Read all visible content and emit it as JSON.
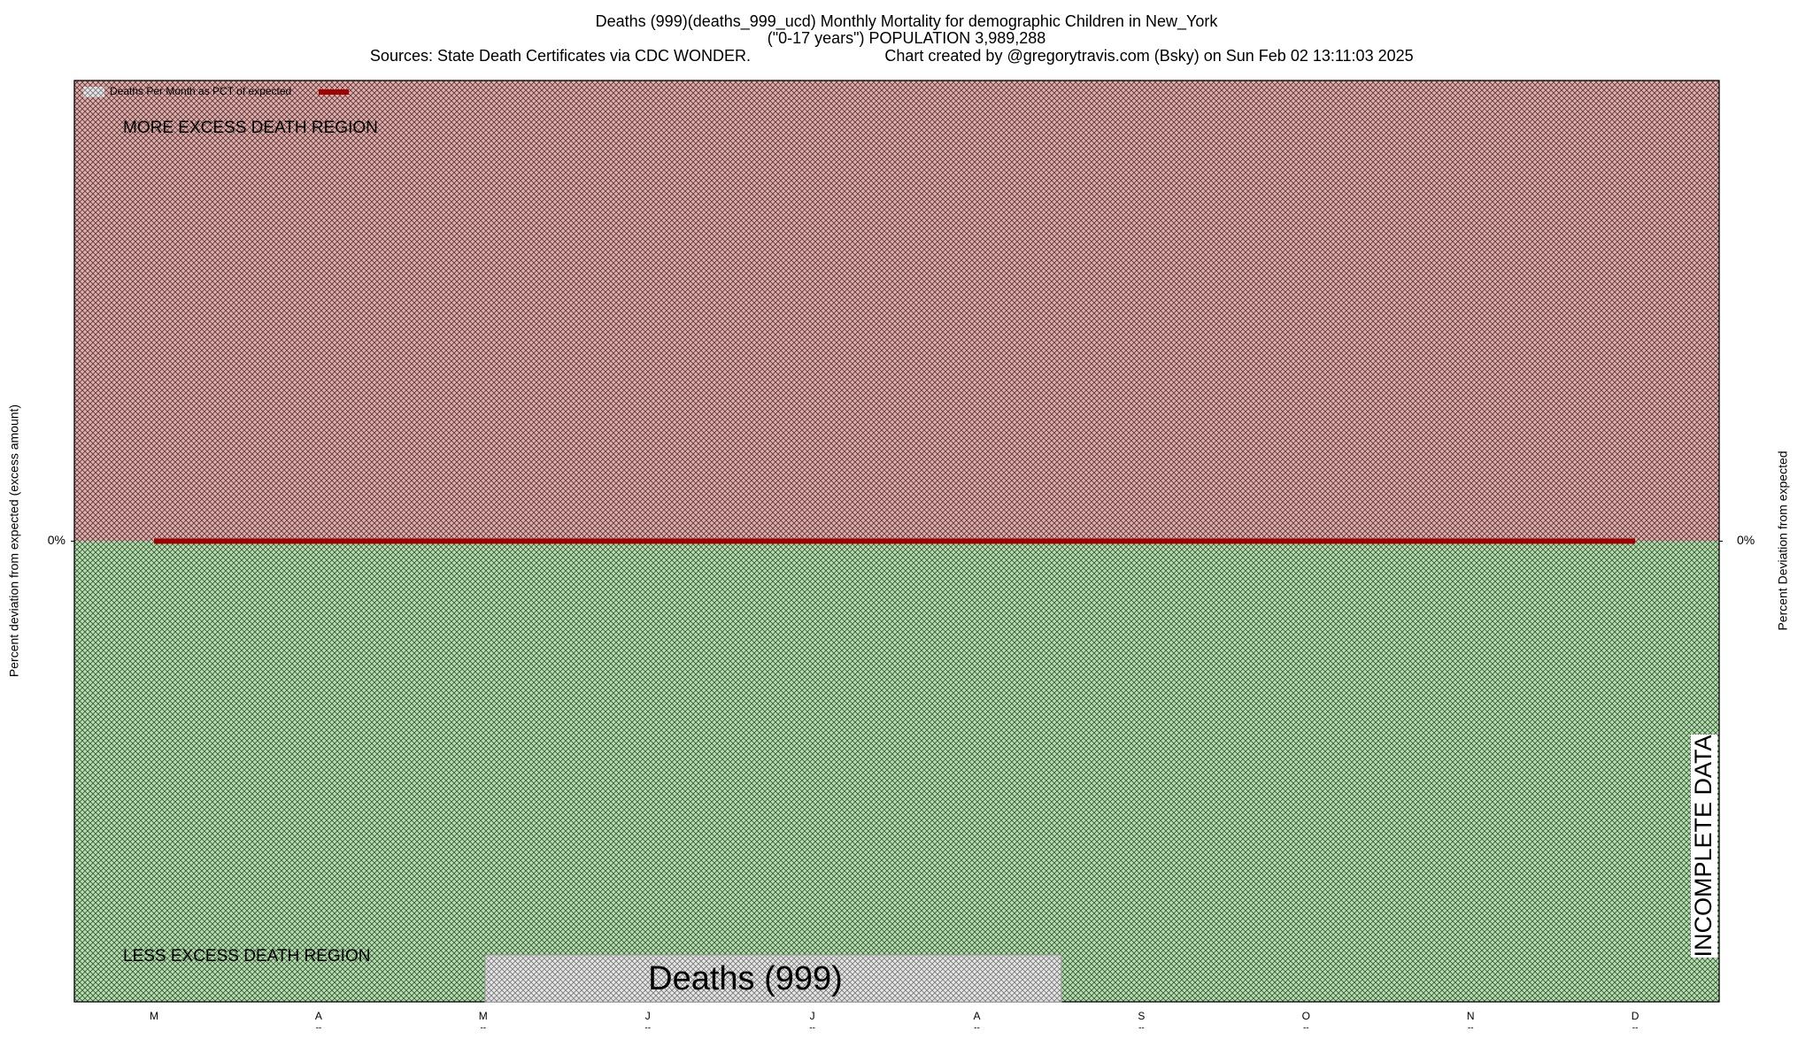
{
  "chart_data": {
    "type": "line",
    "title": "Deaths (999)(deaths_999_ucd) Monthly Mortality for demographic Children in New_York",
    "subtitle": "(\"0-17 years\") POPULATION 3,989,288",
    "source": "Sources: State Death Certificates via CDC WONDER.",
    "credit": "Chart created by @gregorytravis.com (Bsky) on Sun Feb 02 13:11:03 2025",
    "y_label": "Percent deviation from expected (excess amount)",
    "y2_label": "Percent Deviation from expected",
    "annotations": [
      "MORE EXCESS DEATH REGION",
      "LESS EXCESS DEATH REGION",
      "Deaths (999)",
      "INCOMPLETE DATA"
    ],
    "categories": [
      "M",
      "A",
      "M",
      "J",
      "J",
      "A",
      "S",
      "O",
      "N",
      "D"
    ],
    "category_sublabels": [
      "",
      "--",
      "--",
      "--",
      "--",
      "--",
      "--",
      "--",
      "--",
      "--"
    ],
    "series": [
      {
        "name": "Deaths Per Month as PCT of expected",
        "color": "#a00000",
        "values": [
          0,
          0,
          0,
          0,
          0,
          0,
          0,
          0,
          0,
          0
        ]
      }
    ],
    "ylim": [
      -100,
      100
    ],
    "yticks": [
      {
        "value": 0,
        "label": "0%"
      }
    ],
    "y2lim": [
      -100,
      100
    ],
    "y2ticks": [
      {
        "value": 0,
        "label": "0%"
      }
    ],
    "legend": "upper-left"
  }
}
